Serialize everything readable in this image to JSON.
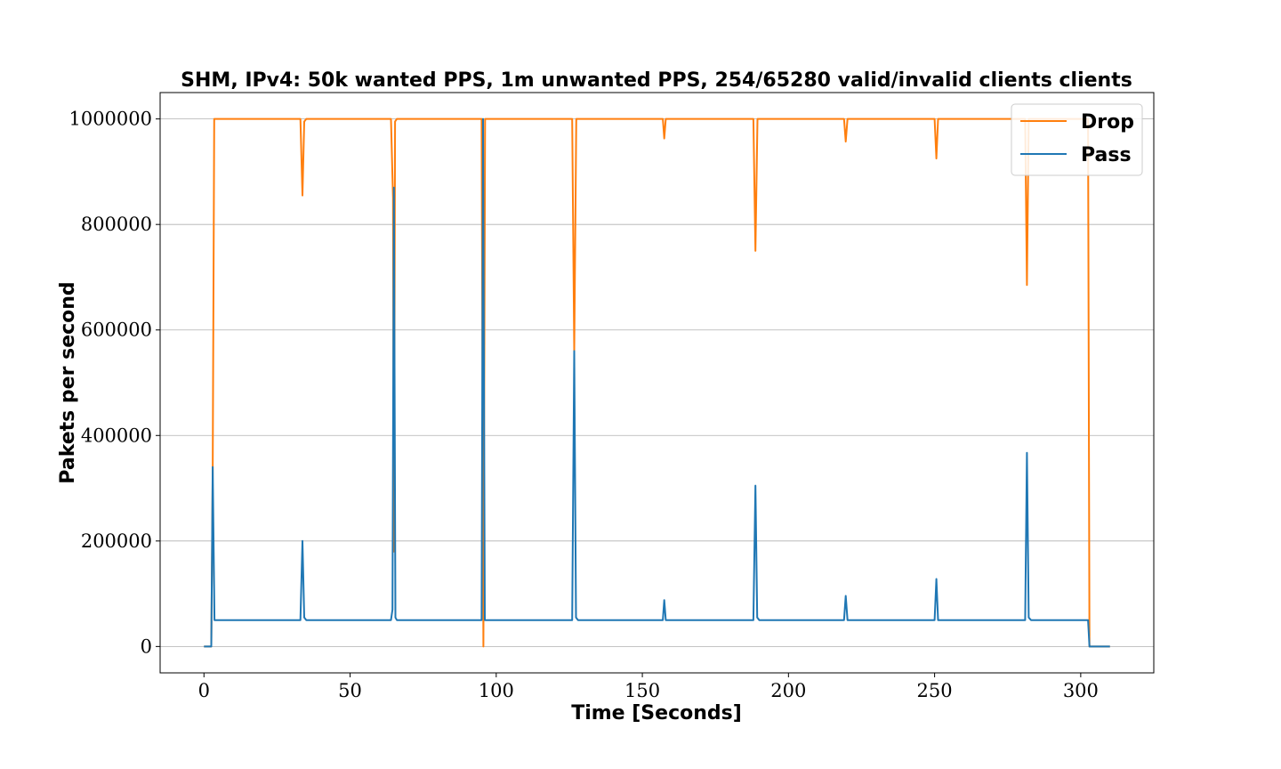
{
  "chart_data": {
    "type": "line",
    "title": "SHM, IPv4: 50k wanted PPS, 1m unwanted PPS, 254/65280 valid/invalid clients clients",
    "xlabel": "Time [Seconds]",
    "ylabel": "Pakets per second",
    "xlim": [
      -15,
      325
    ],
    "ylim": [
      -50000,
      1050000
    ],
    "x_ticks": [
      0,
      50,
      100,
      150,
      200,
      250,
      300
    ],
    "y_ticks": [
      0,
      200000,
      400000,
      600000,
      800000,
      1000000
    ],
    "x_tick_labels": [
      "0",
      "50",
      "100",
      "150",
      "200",
      "250",
      "300"
    ],
    "y_tick_labels": [
      "0",
      "200000",
      "400000",
      "600000",
      "800000",
      "1000000"
    ],
    "grid": "horizontal",
    "legend_position": "top-right",
    "series": [
      {
        "name": "Drop",
        "color": "#ff7f0e",
        "points": [
          [
            0,
            0
          ],
          [
            2.5,
            0
          ],
          [
            3,
            330000
          ],
          [
            3.5,
            1000000
          ],
          [
            33,
            1000000
          ],
          [
            33.7,
            855000
          ],
          [
            34.3,
            995000
          ],
          [
            35,
            1000000
          ],
          [
            64,
            1000000
          ],
          [
            64.7,
            850000
          ],
          [
            65,
            180000
          ],
          [
            65.4,
            995000
          ],
          [
            66,
            1000000
          ],
          [
            95,
            1000000
          ],
          [
            95.6,
            0
          ],
          [
            96.2,
            1000000
          ],
          [
            126,
            1000000
          ],
          [
            126.7,
            560000
          ],
          [
            127.4,
            1000000
          ],
          [
            157,
            1000000
          ],
          [
            157.5,
            963000
          ],
          [
            158,
            1000000
          ],
          [
            188,
            1000000
          ],
          [
            188.7,
            750000
          ],
          [
            189.4,
            1000000
          ],
          [
            219,
            1000000
          ],
          [
            219.6,
            957000
          ],
          [
            220.2,
            1000000
          ],
          [
            250,
            1000000
          ],
          [
            250.6,
            925000
          ],
          [
            251.2,
            1000000
          ],
          [
            281,
            1000000
          ],
          [
            281.6,
            685000
          ],
          [
            282.2,
            1000000
          ],
          [
            302.5,
            1000000
          ],
          [
            303,
            0
          ],
          [
            310,
            0
          ]
        ]
      },
      {
        "name": "Pass",
        "color": "#1f77b4",
        "points": [
          [
            0,
            0
          ],
          [
            2.5,
            0
          ],
          [
            3,
            340000
          ],
          [
            3.6,
            50000
          ],
          [
            33,
            50000
          ],
          [
            33.7,
            200000
          ],
          [
            34.3,
            55000
          ],
          [
            35,
            50000
          ],
          [
            64,
            50000
          ],
          [
            64.5,
            70000
          ],
          [
            65,
            870000
          ],
          [
            65.5,
            55000
          ],
          [
            66,
            50000
          ],
          [
            95,
            50000
          ],
          [
            95.5,
            1000000
          ],
          [
            96.1,
            50000
          ],
          [
            126,
            50000
          ],
          [
            126.7,
            560000
          ],
          [
            127.3,
            55000
          ],
          [
            128,
            50000
          ],
          [
            157,
            50000
          ],
          [
            157.5,
            88000
          ],
          [
            158,
            50000
          ],
          [
            188,
            50000
          ],
          [
            188.7,
            305000
          ],
          [
            189.3,
            55000
          ],
          [
            190,
            50000
          ],
          [
            219,
            50000
          ],
          [
            219.6,
            96000
          ],
          [
            220.2,
            50000
          ],
          [
            250,
            50000
          ],
          [
            250.6,
            128000
          ],
          [
            251.2,
            50000
          ],
          [
            281,
            50000
          ],
          [
            281.6,
            367000
          ],
          [
            282.2,
            55000
          ],
          [
            283,
            50000
          ],
          [
            302.5,
            50000
          ],
          [
            303,
            0
          ],
          [
            310,
            0
          ]
        ]
      }
    ]
  }
}
